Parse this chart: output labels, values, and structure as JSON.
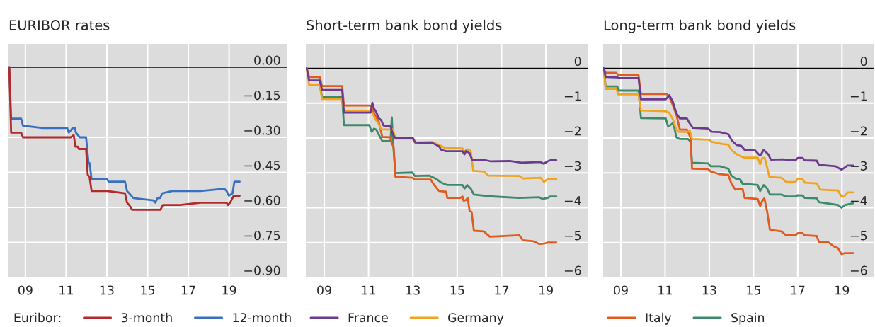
{
  "chart_data": [
    {
      "type": "line",
      "title": "EURIBOR rates",
      "legend_title": "Euribor:",
      "legend": "bottom",
      "grid": true,
      "xlim": [
        2008.17,
        2021.83
      ],
      "xticks": [
        {
          "value": 2009,
          "label": "09"
        },
        {
          "value": 2011,
          "label": "11"
        },
        {
          "value": 2013,
          "label": "13"
        },
        {
          "value": 2015,
          "label": "15"
        },
        {
          "value": 2017,
          "label": "17"
        },
        {
          "value": 2019,
          "label": "19"
        }
      ],
      "ylim": [
        -0.9,
        0.1
      ],
      "yticks": [
        {
          "value": 0,
          "label": "0.00"
        },
        {
          "value": -0.15,
          "label": "−0.15"
        },
        {
          "value": -0.3,
          "label": "−0.30"
        },
        {
          "value": -0.45,
          "label": "−0.45"
        },
        {
          "value": -0.6,
          "label": "−0.60"
        },
        {
          "value": -0.75,
          "label": "−0.75"
        },
        {
          "value": -0.9,
          "label": "−0.90"
        }
      ],
      "ref_lines": [
        {
          "axis": "y",
          "value": 0,
          "color": "#000000"
        }
      ],
      "series": [
        {
          "name": "3-month",
          "color": "#b22a2a",
          "x": [
            2008.21,
            2008.3,
            2008.79,
            2008.88,
            2009.84,
            2011.11,
            2011.23,
            2011.37,
            2011.46,
            2011.57,
            2011.63,
            2011.98,
            2012.06,
            2012.15,
            2012.25,
            2013.02,
            2013.89,
            2013.99,
            2014.1,
            2014.24,
            2015.29,
            2015.4,
            2015.52,
            2015.63,
            2015.75,
            2016.21,
            2016.56,
            2017.6,
            2017.72,
            2018.88,
            2018.94,
            2019.05,
            2019.17,
            2019.23,
            2019.52
          ],
          "values": [
            0,
            -0.28,
            -0.28,
            -0.3,
            -0.3,
            -0.3,
            -0.3,
            -0.29,
            -0.34,
            -0.34,
            -0.35,
            -0.35,
            -0.46,
            -0.47,
            -0.53,
            -0.53,
            -0.54,
            -0.58,
            -0.59,
            -0.61,
            -0.61,
            -0.61,
            -0.61,
            -0.61,
            -0.59,
            -0.59,
            -0.59,
            -0.58,
            -0.58,
            -0.58,
            -0.59,
            -0.58,
            -0.56,
            -0.55,
            -0.55
          ]
        },
        {
          "name": "12-month",
          "color": "#3a70c0",
          "x": [
            2008.21,
            2008.3,
            2008.79,
            2008.88,
            2009.84,
            2009.89,
            2011.05,
            2011.13,
            2011.23,
            2011.32,
            2011.43,
            2011.48,
            2011.57,
            2011.67,
            2011.98,
            2012.1,
            2012.15,
            2012.25,
            2013.02,
            2013.08,
            2013.89,
            2013.99,
            2014.1,
            2014.3,
            2015.29,
            2015.38,
            2015.49,
            2015.61,
            2015.72,
            2016.21,
            2017.02,
            2017.6,
            2018.76,
            2018.88,
            2018.99,
            2019.17,
            2019.26,
            2019.52
          ],
          "values": [
            0,
            -0.22,
            -0.22,
            -0.25,
            -0.26,
            -0.26,
            -0.26,
            -0.28,
            -0.27,
            -0.26,
            -0.26,
            -0.28,
            -0.29,
            -0.3,
            -0.3,
            -0.41,
            -0.41,
            -0.48,
            -0.48,
            -0.49,
            -0.49,
            -0.53,
            -0.54,
            -0.56,
            -0.57,
            -0.58,
            -0.56,
            -0.56,
            -0.54,
            -0.53,
            -0.53,
            -0.53,
            -0.52,
            -0.53,
            -0.55,
            -0.54,
            -0.49,
            -0.49
          ]
        }
      ]
    },
    {
      "type": "line",
      "title": "Short-term bank bond yields",
      "legend": "bottom",
      "grid": true,
      "xlim": [
        2008.17,
        2020.88
      ],
      "xticks": [
        {
          "value": 2009,
          "label": "09"
        },
        {
          "value": 2011,
          "label": "11"
        },
        {
          "value": 2013,
          "label": "13"
        },
        {
          "value": 2015,
          "label": "15"
        },
        {
          "value": 2017,
          "label": "17"
        },
        {
          "value": 2019,
          "label": "19"
        }
      ],
      "ylim": [
        -6,
        0.7
      ],
      "yticks": [
        0,
        {
          "value": -1,
          "label": "−1"
        },
        {
          "value": -2,
          "label": "−2"
        },
        {
          "value": -3,
          "label": "−3"
        },
        {
          "value": -4,
          "label": "−4"
        },
        {
          "value": -5,
          "label": "−5"
        },
        {
          "value": -6,
          "label": "−6"
        }
      ],
      "ref_lines": [
        {
          "axis": "y",
          "value": 0,
          "color": "#000000"
        }
      ],
      "series": [
        {
          "name": "France",
          "color": "#6b3b8f",
          "x": [
            2008.21,
            2008.32,
            2008.8,
            2008.9,
            2009.81,
            2009.89,
            2011.09,
            2011.17,
            2011.25,
            2011.35,
            2011.46,
            2011.57,
            2011.67,
            2011.99,
            2012.1,
            2012.21,
            2013.0,
            2013.11,
            2013.91,
            2014.18,
            2014.28,
            2014.5,
            2015.24,
            2015.33,
            2015.4,
            2015.56,
            2015.67,
            2016.3,
            2016.52,
            2017.37,
            2017.9,
            2018.76,
            2018.91,
            2019.07,
            2019.23,
            2019.47
          ],
          "values": [
            0,
            -0.35,
            -0.35,
            -0.62,
            -0.62,
            -1.27,
            -1.27,
            -0.99,
            -1.16,
            -1.26,
            -1.43,
            -1.49,
            -1.64,
            -1.66,
            -1.9,
            -2.0,
            -2.0,
            -2.13,
            -2.15,
            -2.24,
            -2.34,
            -2.38,
            -2.38,
            -2.47,
            -2.37,
            -2.44,
            -2.62,
            -2.64,
            -2.67,
            -2.66,
            -2.71,
            -2.69,
            -2.74,
            -2.67,
            -2.63,
            -2.64
          ]
        },
        {
          "name": "Germany",
          "color": "#f2a31e",
          "x": [
            2008.21,
            2008.32,
            2008.8,
            2008.9,
            2009.81,
            2009.89,
            2011.09,
            2011.19,
            2011.3,
            2011.46,
            2011.57,
            2011.99,
            2012.1,
            2012.21,
            2012.98,
            2013.09,
            2013.86,
            2014.18,
            2014.44,
            2015.24,
            2015.29,
            2015.45,
            2015.61,
            2015.72,
            2016.2,
            2016.41,
            2017.8,
            2017.96,
            2018.76,
            2018.91,
            2019.07,
            2019.47
          ],
          "values": [
            0,
            -0.48,
            -0.48,
            -0.88,
            -0.88,
            -1.23,
            -1.23,
            -1.29,
            -1.46,
            -1.6,
            -1.75,
            -1.76,
            -1.75,
            -2.02,
            -2.02,
            -2.13,
            -2.11,
            -2.2,
            -2.28,
            -2.3,
            -2.4,
            -2.32,
            -2.37,
            -2.94,
            -2.96,
            -3.08,
            -3.09,
            -3.16,
            -3.14,
            -3.26,
            -3.18,
            -3.18
          ]
        },
        {
          "color": "#e15a1e",
          "x": [
            2008.21,
            2008.32,
            2008.8,
            2008.9,
            2009.81,
            2009.89,
            2011.03,
            2011.14,
            2011.25,
            2011.46,
            2011.62,
            2011.99,
            2012.05,
            2012.13,
            2012.21,
            2012.98,
            2013.09,
            2013.8,
            2013.96,
            2014.18,
            2014.5,
            2014.55,
            2015.13,
            2015.24,
            2015.29,
            2015.4,
            2015.47,
            2015.56,
            2015.65,
            2015.75,
            2016.2,
            2016.47,
            2017.8,
            2017.96,
            2018.44,
            2018.7,
            2018.91,
            2019.07,
            2019.47
          ],
          "values": [
            0,
            -0.25,
            -0.25,
            -0.51,
            -0.51,
            -1.07,
            -1.07,
            -1.09,
            -1.29,
            -1.53,
            -1.97,
            -1.98,
            -2.17,
            -2.24,
            -3.11,
            -3.14,
            -3.19,
            -3.19,
            -3.35,
            -3.52,
            -3.54,
            -3.72,
            -3.72,
            -3.68,
            -3.8,
            -3.78,
            -3.72,
            -4.09,
            -4.12,
            -4.66,
            -4.68,
            -4.83,
            -4.79,
            -4.93,
            -4.96,
            -5.04,
            -5.03,
            -5.0,
            -5.0
          ]
        },
        {
          "color": "#3d8a6a",
          "x": [
            2008.8,
            2008.9,
            2009.81,
            2009.89,
            2011.03,
            2011.14,
            2011.25,
            2011.35,
            2011.46,
            2011.62,
            2011.99,
            2012.05,
            2012.1,
            2012.21,
            2012.98,
            2013.09,
            2013.75,
            2014.07,
            2014.28,
            2014.55,
            2015.24,
            2015.33,
            2015.45,
            2015.61,
            2015.75,
            2016.41,
            2017.8,
            2018.7,
            2018.86,
            2019.07,
            2019.18,
            2019.47
          ],
          "values": [
            -0.48,
            -0.82,
            -0.82,
            -1.63,
            -1.63,
            -1.82,
            -1.73,
            -1.76,
            -1.9,
            -2.09,
            -2.09,
            -1.41,
            -2.09,
            -3.01,
            -2.99,
            -3.09,
            -3.08,
            -3.18,
            -3.28,
            -3.35,
            -3.35,
            -3.45,
            -3.35,
            -3.45,
            -3.62,
            -3.67,
            -3.72,
            -3.7,
            -3.75,
            -3.72,
            -3.68,
            -3.68
          ]
        }
      ]
    },
    {
      "type": "line",
      "title": "Long-term bank bond yields",
      "legend": "bottom",
      "grid": true,
      "xlim": [
        2008.2,
        2020.43
      ],
      "xticks": [
        {
          "value": 2009,
          "label": "09"
        },
        {
          "value": 2011,
          "label": "11"
        },
        {
          "value": 2013,
          "label": "13"
        },
        {
          "value": 2015,
          "label": "15"
        },
        {
          "value": 2017,
          "label": "17"
        },
        {
          "value": 2019,
          "label": "19"
        }
      ],
      "ylim": [
        -6,
        0.7
      ],
      "yticks": [
        0,
        {
          "value": -1,
          "label": "−1"
        },
        {
          "value": -2,
          "label": "−2"
        },
        {
          "value": -3,
          "label": "−3"
        },
        {
          "value": -4,
          "label": "−4"
        },
        {
          "value": -5,
          "label": "−5"
        },
        {
          "value": -6,
          "label": "−6"
        }
      ],
      "ref_lines": [
        {
          "axis": "y",
          "value": 0,
          "color": "#000000"
        }
      ],
      "series": [
        {
          "color": "#6b3b8f",
          "x": [
            2008.23,
            2008.31,
            2008.84,
            2008.89,
            2009.8,
            2009.91,
            2011.03,
            2011.19,
            2011.35,
            2011.51,
            2011.67,
            2011.99,
            2012.09,
            2012.26,
            2012.95,
            2013.11,
            2013.48,
            2013.86,
            2014.02,
            2014.23,
            2014.44,
            2014.6,
            2015.08,
            2015.3,
            2015.46,
            2015.67,
            2015.78,
            2016.36,
            2016.58,
            2016.9,
            2017.0,
            2017.22,
            2017.32,
            2017.86,
            2017.96,
            2018.71,
            2018.98,
            2019.14,
            2019.25,
            2019.51
          ],
          "values": [
            0,
            -0.25,
            -0.26,
            -0.28,
            -0.28,
            -0.89,
            -0.89,
            -0.77,
            -0.96,
            -1.29,
            -1.44,
            -1.44,
            -1.56,
            -1.71,
            -1.73,
            -1.82,
            -1.83,
            -1.89,
            -2.07,
            -2.2,
            -2.22,
            -2.34,
            -2.36,
            -2.51,
            -2.34,
            -2.47,
            -2.62,
            -2.61,
            -2.64,
            -2.64,
            -2.57,
            -2.57,
            -2.64,
            -2.65,
            -2.77,
            -2.81,
            -2.91,
            -2.84,
            -2.79,
            -2.79
          ]
        },
        {
          "color": "#f2a31e",
          "x": [
            2008.23,
            2008.31,
            2008.79,
            2008.89,
            2009.8,
            2009.91,
            2011.03,
            2011.19,
            2011.35,
            2011.51,
            2011.61,
            2011.99,
            2012.12,
            2012.22,
            2013.0,
            2013.11,
            2013.59,
            2013.86,
            2014.02,
            2014.23,
            2014.55,
            2015.19,
            2015.3,
            2015.4,
            2015.51,
            2015.72,
            2016.26,
            2016.47,
            2016.9,
            2017.0,
            2017.22,
            2017.32,
            2017.86,
            2018.02,
            2018.61,
            2018.82,
            2018.98,
            2019.14,
            2019.25,
            2019.51
          ],
          "values": [
            0,
            -0.59,
            -0.59,
            -0.75,
            -0.75,
            -1.21,
            -1.23,
            -1.28,
            -1.46,
            -1.76,
            -1.82,
            -1.83,
            -1.8,
            -2.03,
            -2.05,
            -2.11,
            -2.17,
            -2.19,
            -2.36,
            -2.46,
            -2.56,
            -2.56,
            -2.75,
            -2.57,
            -2.57,
            -3.12,
            -3.14,
            -3.26,
            -3.26,
            -3.16,
            -3.18,
            -3.28,
            -3.3,
            -3.48,
            -3.5,
            -3.5,
            -3.68,
            -3.65,
            -3.56,
            -3.56
          ]
        },
        {
          "name": "Italy",
          "color": "#e15a1e",
          "x": [
            2008.23,
            2008.31,
            2008.79,
            2008.89,
            2009.8,
            2009.91,
            2011.08,
            2011.24,
            2011.35,
            2011.51,
            2011.67,
            2011.99,
            2012.07,
            2012.15,
            2012.22,
            2012.95,
            2013.06,
            2013.48,
            2013.86,
            2014.0,
            2014.18,
            2014.5,
            2014.6,
            2015.19,
            2015.3,
            2015.4,
            2015.49,
            2015.62,
            2015.74,
            2016.26,
            2016.47,
            2016.9,
            2017.0,
            2017.22,
            2017.32,
            2017.86,
            2017.96,
            2018.39,
            2018.61,
            2018.82,
            2018.98,
            2019.14,
            2019.51
          ],
          "values": [
            0,
            -0.13,
            -0.13,
            -0.2,
            -0.2,
            -0.74,
            -0.74,
            -0.89,
            -1.06,
            -1.33,
            -1.76,
            -1.76,
            -1.87,
            -2.0,
            -2.88,
            -2.89,
            -2.96,
            -3.04,
            -3.06,
            -3.31,
            -3.48,
            -3.45,
            -3.72,
            -3.75,
            -3.95,
            -3.8,
            -3.73,
            -4.12,
            -4.63,
            -4.68,
            -4.79,
            -4.79,
            -4.73,
            -4.73,
            -4.79,
            -4.81,
            -4.98,
            -4.99,
            -5.1,
            -5.16,
            -5.33,
            -5.3,
            -5.3
          ]
        },
        {
          "name": "Spain",
          "color": "#3d8a6a",
          "x": [
            2008.23,
            2008.31,
            2008.84,
            2008.89,
            2009.8,
            2009.91,
            2011.03,
            2011.13,
            2011.24,
            2011.37,
            2011.51,
            2011.67,
            2012.04,
            2012.15,
            2012.22,
            2012.95,
            2013.06,
            2013.48,
            2013.86,
            2014.0,
            2014.23,
            2014.39,
            2014.5,
            2015.19,
            2015.3,
            2015.46,
            2015.62,
            2015.74,
            2016.26,
            2016.47,
            2016.9,
            2017.0,
            2017.22,
            2017.32,
            2017.86,
            2017.96,
            2018.82,
            2018.98,
            2019.14,
            2019.51
          ],
          "values": [
            0,
            -0.52,
            -0.52,
            -0.64,
            -0.64,
            -1.43,
            -1.44,
            -1.66,
            -1.63,
            -1.56,
            -1.98,
            -2.03,
            -2.03,
            -2.1,
            -2.71,
            -2.73,
            -2.81,
            -2.81,
            -2.88,
            -3.08,
            -3.18,
            -3.18,
            -3.31,
            -3.35,
            -3.52,
            -3.35,
            -3.45,
            -3.62,
            -3.62,
            -3.68,
            -3.68,
            -3.64,
            -3.65,
            -3.72,
            -3.73,
            -3.84,
            -3.92,
            -4.0,
            -3.92,
            -3.87
          ]
        }
      ]
    }
  ]
}
